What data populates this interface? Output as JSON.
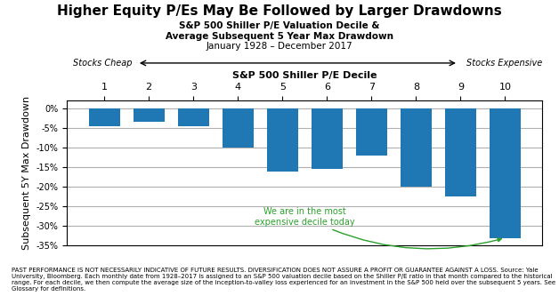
{
  "chart_data": {
    "type": "bar",
    "title": "Higher Equity P/Es May Be Followed by Larger Drawdowns",
    "subtitle": [
      "S&P 500 Shiller P/E Valuation Decile &",
      "Average Subsequent 5 Year Max Drawdown",
      "January 1928 – December 2017"
    ],
    "xlabel": "S&P 500 Shiller P/E Decile",
    "ylabel": "Subsequent 5Y Max Drawdown",
    "categories": [
      "1",
      "2",
      "3",
      "4",
      "5",
      "6",
      "7",
      "8",
      "9",
      "10"
    ],
    "values": [
      -4.5,
      -3.5,
      -4.5,
      -10.0,
      -16.0,
      -15.5,
      -12.0,
      -20.0,
      -22.5,
      -33.0
    ],
    "ylim": [
      -35,
      2
    ],
    "yticks": [
      {
        "value": 0,
        "label": "0%"
      },
      {
        "value": -5,
        "label": "-5%"
      },
      {
        "value": -10,
        "label": "-10%"
      },
      {
        "value": -15,
        "label": "-15%"
      },
      {
        "value": -20,
        "label": "-20%"
      },
      {
        "value": -25,
        "label": "-25%"
      },
      {
        "value": -30,
        "label": "-30%"
      },
      {
        "value": -35,
        "label": "-35%"
      }
    ],
    "grid": true,
    "annotations": [
      {
        "text": "We are in the most\nexpensive decile today",
        "category": "10"
      }
    ],
    "x_direction_labels": [
      "Stocks Cheap",
      "Stocks Expensive"
    ],
    "footnote": "PAST PERFORMANCE IS NOT NECESSARILY INDICATIVE OF FUTURE RESULTS. DIVERSIFICATION DOES NOT ASSURE A PROFIT OR GUARANTEE AGAINST A LOSS. Source: Yale University, Bloomberg. Each monthly date from 1928–2017 is assigned to an S&P 500 valuation decile based on the Shiller P/E ratio in that month compared to the historical range. For each decile, we then compute the average size of the inception-to-valley loss experienced for an investment in the S&P 500 held over the subsequent 5 years. See Glossary for definitions."
  }
}
